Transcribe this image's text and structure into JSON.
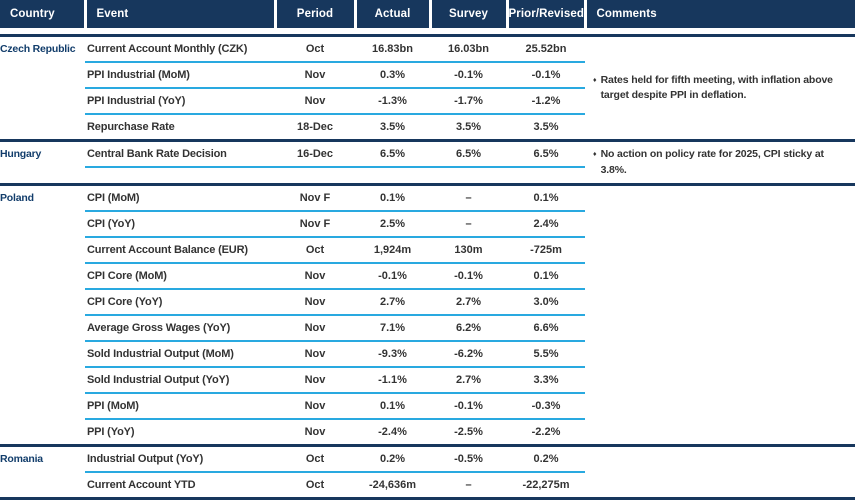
{
  "table": {
    "comment_bullet": "♦",
    "columns": [
      "Country",
      "Event",
      "Period",
      "Actual",
      "Survey",
      "Prior/Revised",
      "Comments"
    ],
    "groups": [
      {
        "country": "Czech Republic",
        "comment": "Rates held for fifth meeting, with inflation above target despite PPI in deflation.",
        "cyan_after_last_row": false,
        "extra_space": false,
        "rows": [
          {
            "event": "Current Account Monthly (CZK)",
            "period": "Oct",
            "actual": "16.83bn",
            "survey": "16.03bn",
            "prior": "25.52bn"
          },
          {
            "event": "PPI Industrial (MoM)",
            "period": "Nov",
            "actual": "0.3%",
            "survey": "-0.1%",
            "prior": "-0.1%"
          },
          {
            "event": "PPI Industrial (YoY)",
            "period": "Nov",
            "actual": "-1.3%",
            "survey": "-1.7%",
            "prior": "-1.2%"
          },
          {
            "event": "Repurchase Rate",
            "period": "18-Dec",
            "actual": "3.5%",
            "survey": "3.5%",
            "prior": "3.5%"
          }
        ]
      },
      {
        "country": "Hungary",
        "comment": "No action on policy rate for 2025, CPI sticky at 3.8%.",
        "cyan_after_last_row": true,
        "extra_space": true,
        "rows": [
          {
            "event": "Central Bank Rate Decision",
            "period": "16-Dec",
            "actual": "6.5%",
            "survey": "6.5%",
            "prior": "6.5%"
          }
        ]
      },
      {
        "country": "Poland",
        "comment": "",
        "cyan_after_last_row": false,
        "extra_space": false,
        "rows": [
          {
            "event": "CPI (MoM)",
            "period": "Nov F",
            "actual": "0.1%",
            "survey": "–",
            "prior": "0.1%"
          },
          {
            "event": "CPI (YoY)",
            "period": "Nov F",
            "actual": "2.5%",
            "survey": "–",
            "prior": "2.4%"
          },
          {
            "event": "Current Account Balance (EUR)",
            "period": "Oct",
            "actual": "1,924m",
            "survey": "130m",
            "prior": "-725m"
          },
          {
            "event": "CPI Core (MoM)",
            "period": "Nov",
            "actual": "-0.1%",
            "survey": "-0.1%",
            "prior": "0.1%"
          },
          {
            "event": "CPI Core (YoY)",
            "period": "Nov",
            "actual": "2.7%",
            "survey": "2.7%",
            "prior": "3.0%"
          },
          {
            "event": "Average Gross Wages (YoY)",
            "period": "Nov",
            "actual": "7.1%",
            "survey": "6.2%",
            "prior": "6.6%"
          },
          {
            "event": "Sold Industrial Output (MoM)",
            "period": "Nov",
            "actual": "-9.3%",
            "survey": "-6.2%",
            "prior": "5.5%"
          },
          {
            "event": "Sold Industrial Output (YoY)",
            "period": "Nov",
            "actual": "-1.1%",
            "survey": "2.7%",
            "prior": "3.3%"
          },
          {
            "event": "PPI (MoM)",
            "period": "Nov",
            "actual": "0.1%",
            "survey": "-0.1%",
            "prior": "-0.3%"
          },
          {
            "event": "PPI (YoY)",
            "period": "Nov",
            "actual": "-2.4%",
            "survey": "-2.5%",
            "prior": "-2.2%"
          }
        ]
      },
      {
        "country": "Romania",
        "comment": "",
        "cyan_after_last_row": false,
        "extra_space": false,
        "rows": [
          {
            "event": "Industrial Output (YoY)",
            "period": "Oct",
            "actual": "0.2%",
            "survey": "-0.5%",
            "prior": "0.2%"
          },
          {
            "event": "Current Account YTD",
            "period": "Oct",
            "actual": "-24,636m",
            "survey": "–",
            "prior": "-22,275m"
          }
        ]
      }
    ]
  },
  "colors": {
    "header_bg": "#17375d",
    "group_separator": "#17375d",
    "row_line": "#29a9e0",
    "country_text": "#123d6b",
    "body_text": "#333333"
  }
}
